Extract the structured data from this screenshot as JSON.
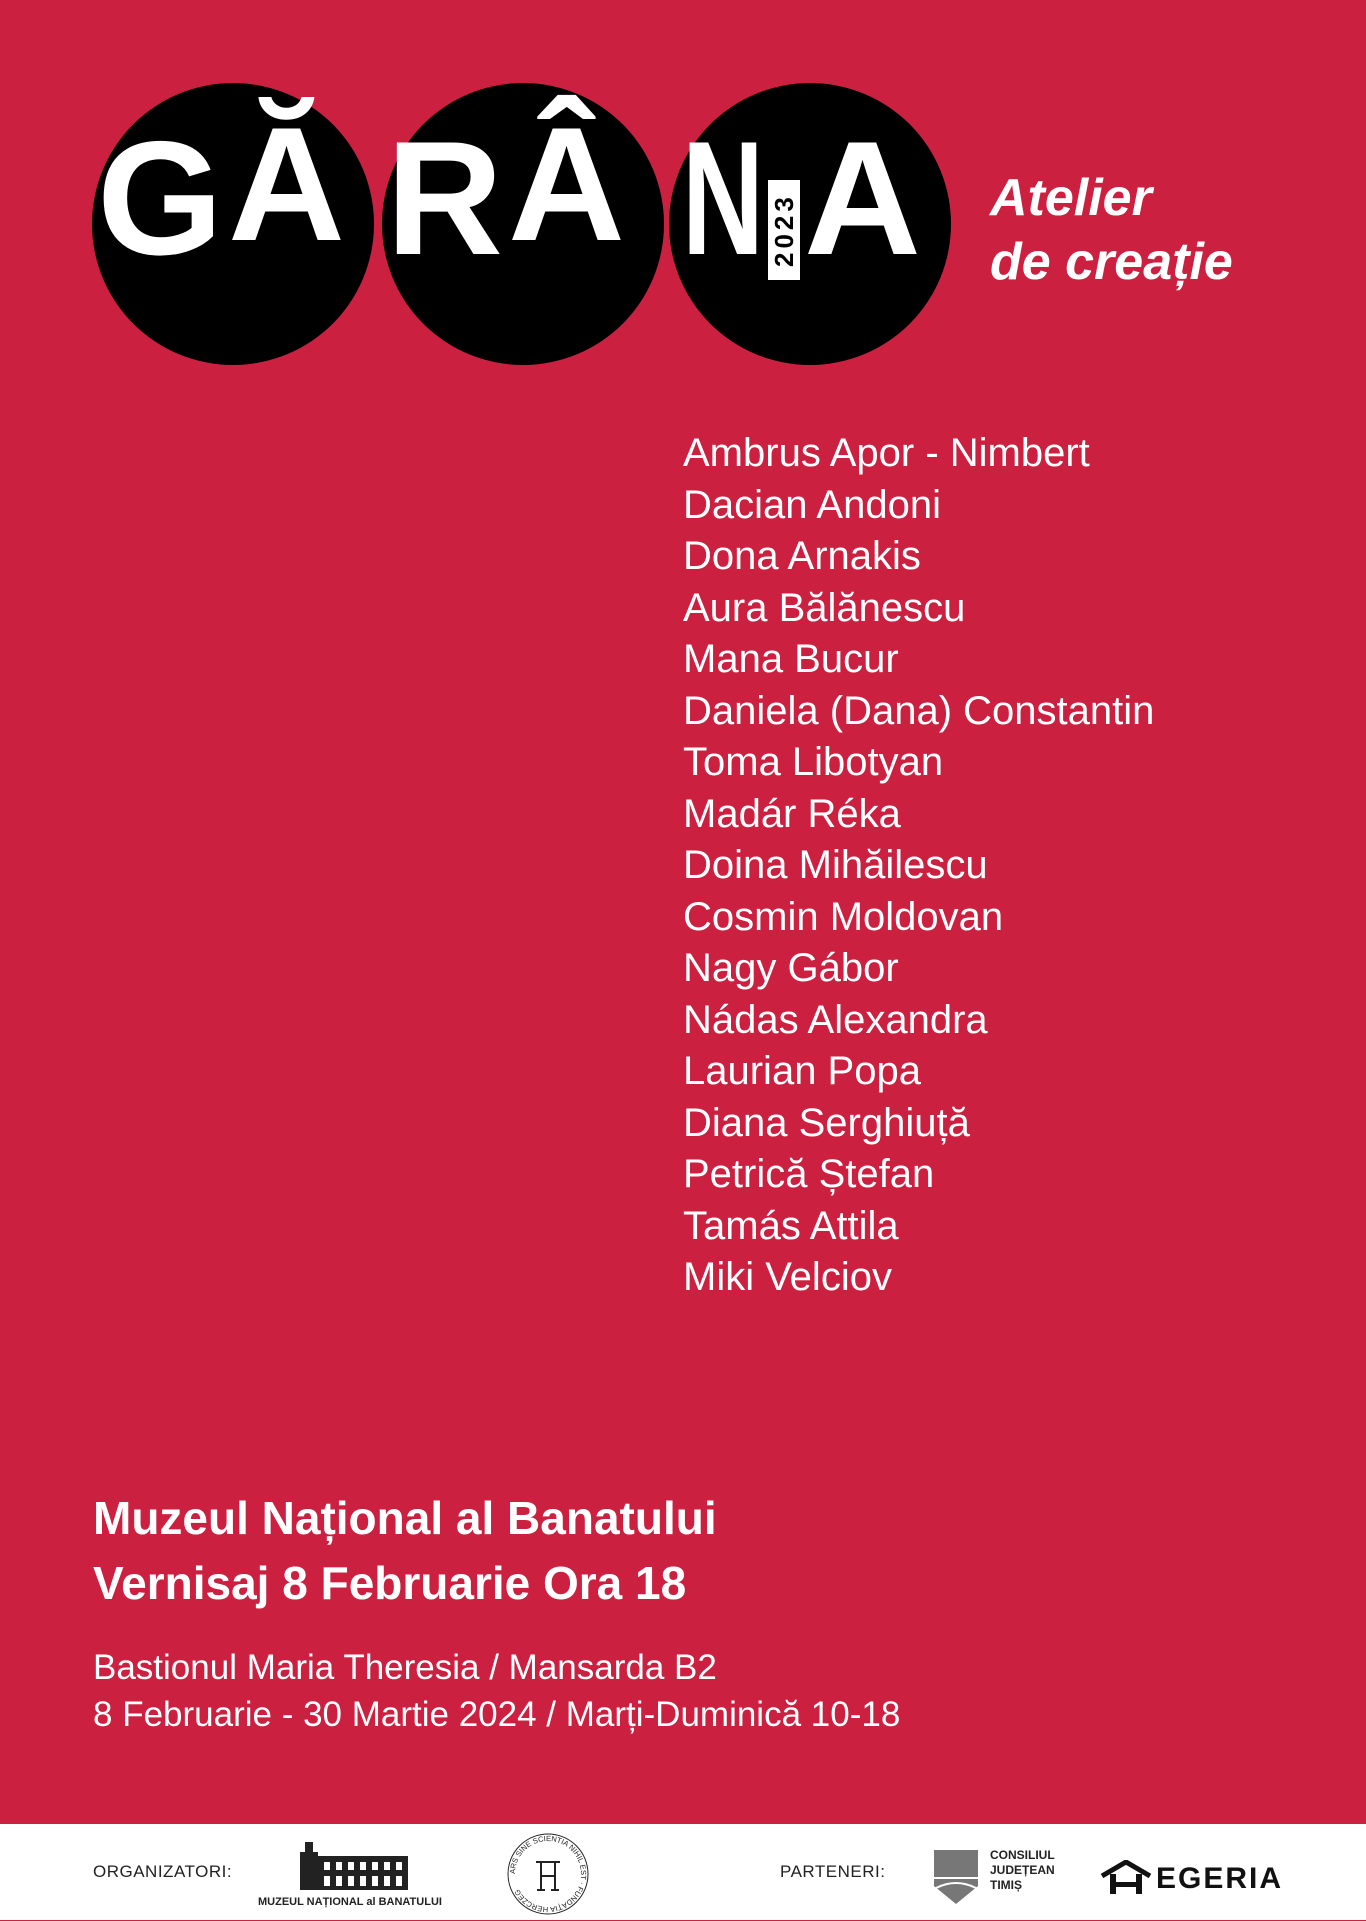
{
  "logo": {
    "letters": [
      "G",
      "Ă",
      "R",
      "Â",
      "N",
      "A"
    ],
    "year": "2023",
    "text": "GĂRÂNA"
  },
  "subtitle": {
    "line1": "Atelier",
    "line2": "de creație"
  },
  "artists": [
    "Ambrus Apor - Nimbert",
    "Dacian Andoni",
    "Dona Arnakis",
    "Aura Bălănescu",
    "Mana Bucur",
    "Daniela (Dana) Constantin",
    "Toma Libotyan",
    "Madár Réka",
    "Doina Mihăilescu",
    "Cosmin Moldovan",
    "Nagy Gábor",
    "Nádas Alexandra",
    "Laurian Popa",
    "Diana Serghiuță",
    "Petrică Ștefan",
    "Tamás Attila",
    "Miki Velciov"
  ],
  "venue": {
    "museum": "Muzeul Național al Banatului",
    "opening": "Vernisaj 8 Februarie Ora 18",
    "location": "Bastionul Maria Theresia / Mansarda B2",
    "dates": "8 Februarie - 30 Martie 2024 / Marți-Duminică 10-18"
  },
  "footer": {
    "organizers_label": "ORGANIZATORI:",
    "partners_label": "PARTENERI:",
    "museum_logo_text": "MUZEUL NAȚIONAL al BANATULUI",
    "foundation_logo_text": "ARS SINE SCIENTIA NIHIL EST · FUNDAȚIA HERCZEG",
    "council_logo_text": [
      "CONSILIUL",
      "JUDEȚEAN",
      "TIMIȘ"
    ],
    "egeria_logo_text": "EGERIA"
  },
  "colors": {
    "background": "#cc2041",
    "circle": "#000000",
    "text": "#ffffff",
    "footer": "#ffffff"
  }
}
